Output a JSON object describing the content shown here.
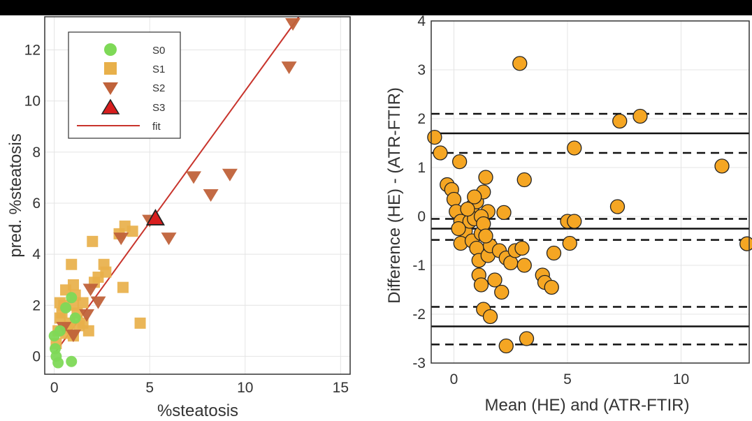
{
  "colors": {
    "s0": "#7ed957",
    "s1": "#e8b04a",
    "s2": "#c0623a",
    "s3_fill": "#d81e1e",
    "fit": "#c8342c",
    "orange": "#f5a623"
  },
  "chart_data": [
    {
      "type": "scatter",
      "title": "",
      "xlabel": "%steatosis",
      "ylabel": "pred. %steatosis",
      "xlim": [
        -0.5,
        15.5
      ],
      "ylim": [
        -0.7,
        13.3
      ],
      "xticks": [
        "0",
        "5",
        "10",
        "15"
      ],
      "yticks": [
        "0",
        "2",
        "4",
        "6",
        "8",
        "10",
        "12"
      ],
      "grid": true,
      "legend_position": "top-left",
      "series": [
        {
          "name": "S0",
          "marker": "circle",
          "points": [
            [
              0.0,
              0.8
            ],
            [
              0.05,
              0.3
            ],
            [
              0.1,
              0.0
            ],
            [
              0.2,
              -0.25
            ],
            [
              0.3,
              1.0
            ],
            [
              0.6,
              1.9
            ],
            [
              0.9,
              2.3
            ],
            [
              0.9,
              -0.2
            ],
            [
              1.1,
              1.5
            ]
          ]
        },
        {
          "name": "S1",
          "marker": "square",
          "points": [
            [
              0.1,
              0.5
            ],
            [
              0.2,
              1.0
            ],
            [
              0.3,
              1.5
            ],
            [
              0.3,
              2.1
            ],
            [
              0.4,
              1.7
            ],
            [
              0.5,
              2.0
            ],
            [
              0.6,
              0.9
            ],
            [
              0.6,
              2.6
            ],
            [
              0.8,
              1.3
            ],
            [
              0.9,
              3.6
            ],
            [
              1.0,
              2.0
            ],
            [
              1.0,
              2.8
            ],
            [
              1.1,
              2.4
            ],
            [
              1.2,
              1.7
            ],
            [
              1.3,
              1.2
            ],
            [
              1.5,
              2.1
            ],
            [
              1.5,
              1.3
            ],
            [
              1.8,
              1.0
            ],
            [
              2.0,
              4.5
            ],
            [
              2.1,
              2.9
            ],
            [
              2.3,
              3.1
            ],
            [
              2.6,
              3.6
            ],
            [
              2.7,
              3.3
            ],
            [
              3.4,
              4.8
            ],
            [
              3.6,
              2.7
            ],
            [
              3.7,
              5.1
            ],
            [
              4.1,
              4.9
            ],
            [
              4.5,
              1.3
            ],
            [
              1.0,
              0.8
            ],
            [
              0.7,
              1.1
            ]
          ]
        },
        {
          "name": "S2",
          "marker": "triangle-down",
          "points": [
            [
              0.5,
              1.1
            ],
            [
              1.0,
              0.8
            ],
            [
              1.7,
              1.6
            ],
            [
              1.9,
              2.6
            ],
            [
              2.3,
              2.1
            ],
            [
              3.5,
              4.6
            ],
            [
              5.0,
              5.3
            ],
            [
              6.0,
              4.6
            ],
            [
              7.3,
              7.0
            ],
            [
              8.2,
              6.3
            ],
            [
              9.2,
              7.1
            ],
            [
              12.3,
              11.3
            ],
            [
              12.5,
              13.0
            ]
          ]
        },
        {
          "name": "S3",
          "marker": "triangle-up",
          "points": [
            [
              5.3,
              5.4
            ]
          ]
        }
      ],
      "fit": {
        "name": "fit",
        "slope": 1.03,
        "intercept": 0.1
      }
    },
    {
      "type": "scatter",
      "title": "",
      "xlabel": "Mean (HE) and (ATR-FTIR)",
      "ylabel": "Difference (HE) - (ATR-FTIR)",
      "xlim": [
        -1,
        13
      ],
      "ylim": [
        -3,
        4
      ],
      "xticks": [
        "0",
        "5",
        "10"
      ],
      "yticks": [
        "-3",
        "-2",
        "-1",
        "0",
        "1",
        "2",
        "3",
        "4"
      ],
      "grid": true,
      "solid_lines": [
        1.7,
        -0.25,
        -2.25
      ],
      "dashed_lines": [
        2.1,
        1.3,
        -0.05,
        -0.48,
        -1.85,
        -2.62
      ],
      "points": [
        [
          -0.85,
          1.62
        ],
        [
          -0.6,
          1.3
        ],
        [
          0.25,
          1.12
        ],
        [
          -0.3,
          0.65
        ],
        [
          -0.1,
          0.55
        ],
        [
          0.0,
          0.35
        ],
        [
          0.1,
          0.1
        ],
        [
          0.3,
          -0.1
        ],
        [
          0.5,
          -0.3
        ],
        [
          0.3,
          -0.55
        ],
        [
          0.7,
          -0.1
        ],
        [
          0.8,
          0.2
        ],
        [
          0.9,
          -0.05
        ],
        [
          1.0,
          0.3
        ],
        [
          0.8,
          -0.5
        ],
        [
          1.0,
          -0.65
        ],
        [
          1.1,
          -0.9
        ],
        [
          1.2,
          -0.35
        ],
        [
          1.3,
          0.5
        ],
        [
          1.4,
          0.8
        ],
        [
          1.5,
          0.1
        ],
        [
          1.5,
          -0.8
        ],
        [
          1.6,
          -0.6
        ],
        [
          1.1,
          -1.2
        ],
        [
          1.2,
          -1.4
        ],
        [
          1.3,
          -1.9
        ],
        [
          1.6,
          -2.05
        ],
        [
          1.8,
          -1.3
        ],
        [
          2.0,
          -0.7
        ],
        [
          2.2,
          0.08
        ],
        [
          2.1,
          -1.55
        ],
        [
          2.3,
          -0.85
        ],
        [
          2.5,
          -0.95
        ],
        [
          2.7,
          -0.7
        ],
        [
          2.9,
          3.13
        ],
        [
          3.0,
          -0.65
        ],
        [
          3.1,
          0.75
        ],
        [
          3.1,
          -1.0
        ],
        [
          2.3,
          -2.65
        ],
        [
          3.2,
          -2.5
        ],
        [
          3.9,
          -1.2
        ],
        [
          4.0,
          -1.35
        ],
        [
          4.3,
          -1.45
        ],
        [
          4.4,
          -0.75
        ],
        [
          5.0,
          -0.1
        ],
        [
          5.1,
          -0.55
        ],
        [
          5.3,
          1.4
        ],
        [
          5.3,
          -0.1
        ],
        [
          7.2,
          0.2
        ],
        [
          7.3,
          1.95
        ],
        [
          8.2,
          2.05
        ],
        [
          11.8,
          1.03
        ],
        [
          12.9,
          -0.56
        ],
        [
          0.6,
          0.15
        ],
        [
          0.9,
          0.4
        ],
        [
          1.2,
          0.0
        ],
        [
          1.3,
          -0.15
        ],
        [
          1.4,
          -0.4
        ],
        [
          0.2,
          -0.25
        ]
      ]
    }
  ]
}
